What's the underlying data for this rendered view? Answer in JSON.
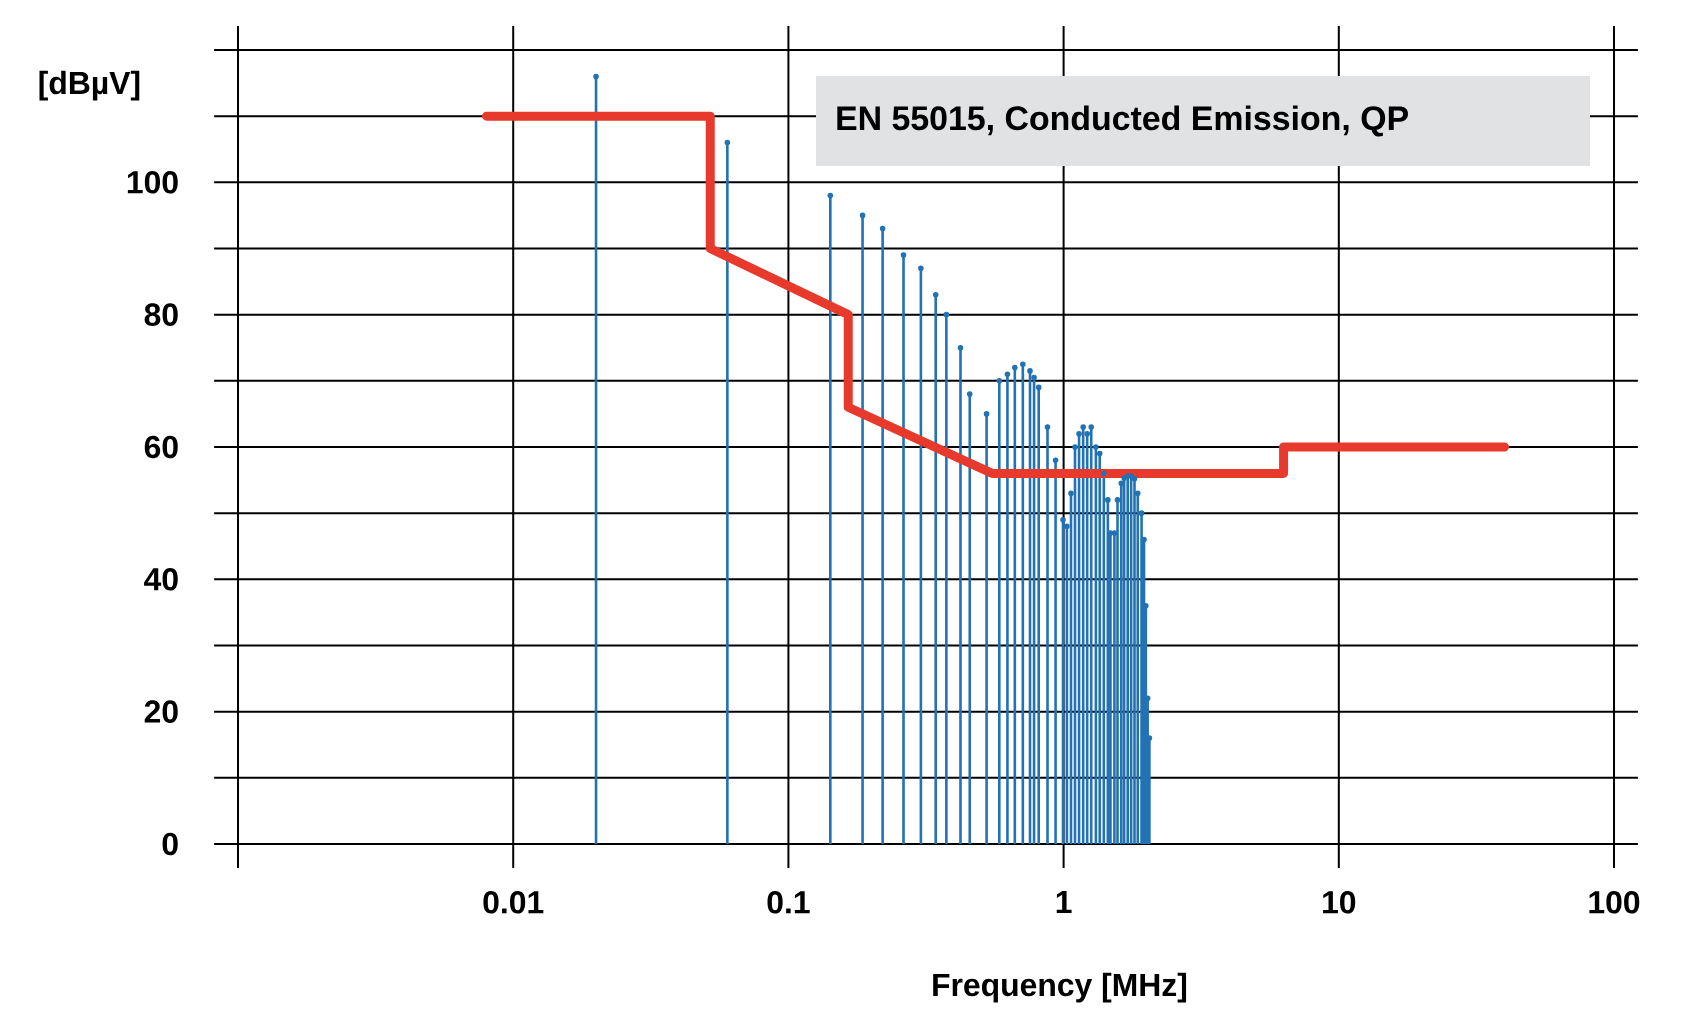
{
  "chart_data": {
    "type": "lollipop",
    "title": "EN 55015, Conducted Emission, QP",
    "xlabel": "Frequency [MHz]",
    "ylabel": "[dBµV]",
    "xlim": [
      0.001,
      100
    ],
    "ylim": [
      0,
      120
    ],
    "xticks": [
      {
        "value": 0.001,
        "label": null
      },
      0.01,
      0.1,
      1,
      10,
      100
    ],
    "yticks": [
      0,
      {
        "value": 10,
        "label": null
      },
      20,
      {
        "value": 30,
        "label": null
      },
      40,
      {
        "value": 50,
        "label": null
      },
      60,
      {
        "value": 70,
        "label": null
      },
      80,
      {
        "value": 90,
        "label": null
      },
      100,
      {
        "value": 110,
        "label": null
      },
      {
        "value": 120,
        "label": null
      }
    ],
    "log": "x",
    "grid": true,
    "series": [
      {
        "color": "#2272b4",
        "marker": "circle",
        "x": [
          0.02,
          0.06,
          0.142,
          0.186,
          0.22,
          0.262,
          0.303,
          0.343,
          0.375,
          0.422,
          0.456,
          0.525,
          0.584,
          0.625,
          0.665,
          0.711,
          0.755,
          0.781,
          0.812,
          0.874,
          0.935,
          0.995,
          1.028,
          1.064,
          1.1,
          1.138,
          1.178,
          1.218,
          1.26,
          1.31,
          1.353,
          1.4,
          1.448,
          1.48,
          1.53,
          1.57,
          1.62,
          1.66,
          1.71,
          1.76,
          1.81,
          1.86,
          1.92,
          1.96,
          1.99,
          2.02,
          2.05
        ],
        "values": [
          116,
          106,
          98,
          95,
          93,
          89,
          87,
          83,
          80,
          75,
          68,
          65,
          70,
          71,
          72,
          72.5,
          71.5,
          70.5,
          69,
          63,
          58,
          49,
          48,
          53,
          60,
          62,
          63,
          62,
          63,
          60,
          59,
          56,
          52,
          47,
          47,
          52,
          54.5,
          55.3,
          55.6,
          55.6,
          55.2,
          53,
          50,
          46,
          36,
          22,
          16
        ]
      },
      {
        "type": "line",
        "color": "#e8392d",
        "x": [
          0.008,
          0.052,
          0.052,
          0.165,
          0.165,
          0.55,
          6.3,
          6.3,
          40
        ],
        "values": [
          110,
          110,
          90,
          80,
          66,
          56,
          56,
          60,
          60
        ]
      }
    ]
  }
}
